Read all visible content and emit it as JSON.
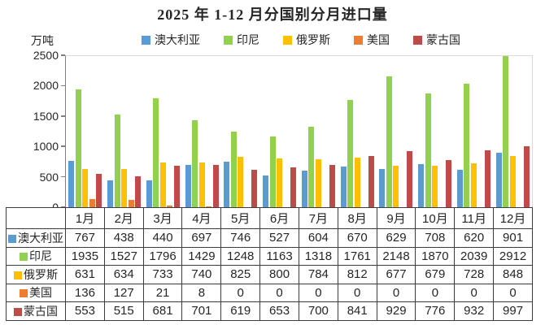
{
  "chart_data": {
    "type": "bar",
    "title": "2025 年 1-12 月分国别分月进口量",
    "ylabel": "万吨",
    "xlabel": "",
    "ylim": [
      0,
      2500
    ],
    "y_ticks": [
      0,
      500,
      1000,
      1500,
      2000,
      2500
    ],
    "grid": false,
    "legend_position": "top",
    "data_table_shown": true,
    "categories": [
      "1月",
      "2月",
      "3月",
      "4月",
      "5月",
      "6月",
      "7月",
      "8月",
      "9月",
      "10月",
      "11月",
      "12月"
    ],
    "series": [
      {
        "name": "澳大利亚",
        "color": "#5B9BD5",
        "values": [
          767,
          438,
          440,
          697,
          746,
          527,
          604,
          670,
          629,
          708,
          620,
          901
        ]
      },
      {
        "name": "印尼",
        "color": "#92D050",
        "values": [
          1935,
          1527,
          1796,
          1429,
          1248,
          1163,
          1318,
          1761,
          2148,
          1870,
          2039,
          2912
        ]
      },
      {
        "name": "俄罗斯",
        "color": "#FFC000",
        "values": [
          631,
          634,
          733,
          740,
          825,
          800,
          784,
          812,
          677,
          679,
          728,
          848
        ]
      },
      {
        "name": "美国",
        "color": "#ED7D31",
        "values": [
          136,
          127,
          21,
          8,
          0,
          0,
          0,
          0,
          0,
          0,
          0,
          0
        ]
      },
      {
        "name": "蒙古国",
        "color": "#BE4B48",
        "values": [
          553,
          515,
          681,
          701,
          619,
          653,
          700,
          841,
          929,
          776,
          932,
          997
        ]
      }
    ]
  }
}
